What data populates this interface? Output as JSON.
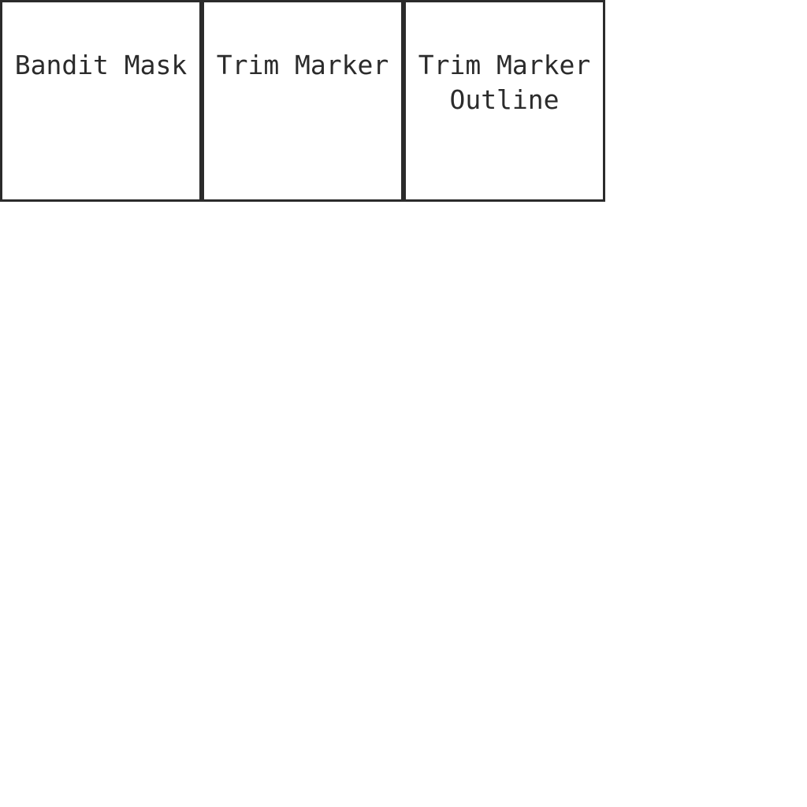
{
  "cells": [
    {
      "label": "Bandit Mask"
    },
    {
      "label": "Trim Marker"
    },
    {
      "label": "Trim Marker Outline"
    }
  ],
  "colors": {
    "border": "#2b2b2b",
    "text": "#2b2b2b",
    "background": "#ffffff"
  }
}
